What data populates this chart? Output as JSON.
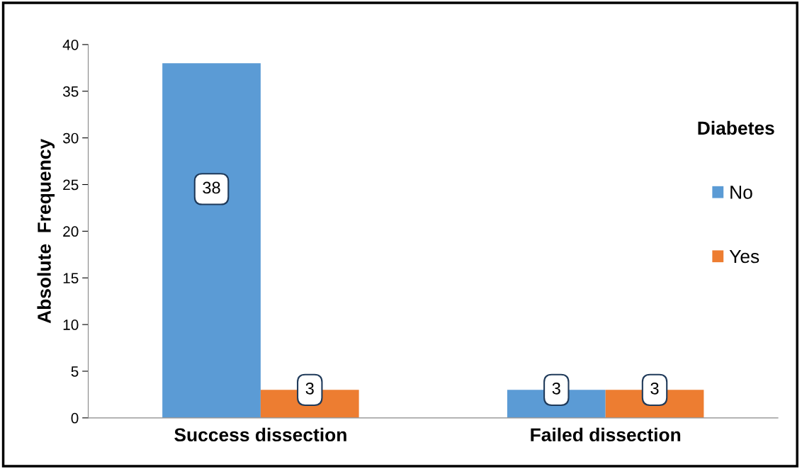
{
  "chart_data": {
    "type": "bar",
    "categories": [
      "Success dissection",
      "Failed dissection"
    ],
    "ylabel": "Absolute  Frequency",
    "legend_title": "Diabetes",
    "legend": "right",
    "series": [
      {
        "name": "No",
        "color": "#5b9bd5",
        "values": [
          38,
          3
        ]
      },
      {
        "name": "Yes",
        "color": "#ed7d31",
        "values": [
          3,
          3
        ]
      }
    ],
    "ylim": [
      0,
      40
    ],
    "yticks": [
      0,
      5,
      10,
      15,
      20,
      25,
      30,
      35,
      40
    ],
    "grid": false,
    "data_labels": true
  }
}
